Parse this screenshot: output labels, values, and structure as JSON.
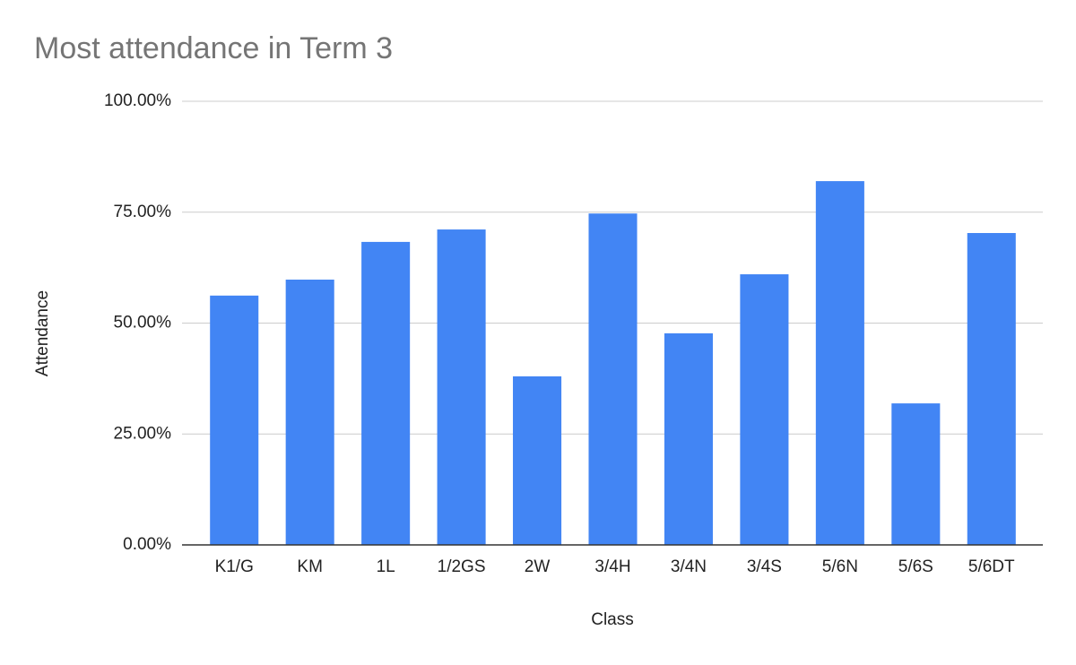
{
  "chart_data": {
    "type": "bar",
    "title": "Most attendance in Term 3",
    "x_label": "Class",
    "y_label": "Attendance",
    "categories": [
      "K1/G",
      "KM",
      "1L",
      "1/2GS",
      "2W",
      "3/4H",
      "3/4N",
      "3/4S",
      "5/6N",
      "5/6S",
      "5/6DT"
    ],
    "values": [
      56.2,
      59.8,
      68.3,
      71.1,
      38.0,
      74.7,
      47.7,
      61.0,
      82.0,
      31.9,
      70.3
    ],
    "color": "#4285f4",
    "ylim": [
      0,
      100
    ],
    "yticks": [
      {
        "value": 0,
        "label": "0.00%"
      },
      {
        "value": 25,
        "label": "25.00%"
      },
      {
        "value": 50,
        "label": "50.00%"
      },
      {
        "value": 75,
        "label": "75.00%"
      },
      {
        "value": 100,
        "label": "100.00%"
      }
    ],
    "grid": true
  }
}
